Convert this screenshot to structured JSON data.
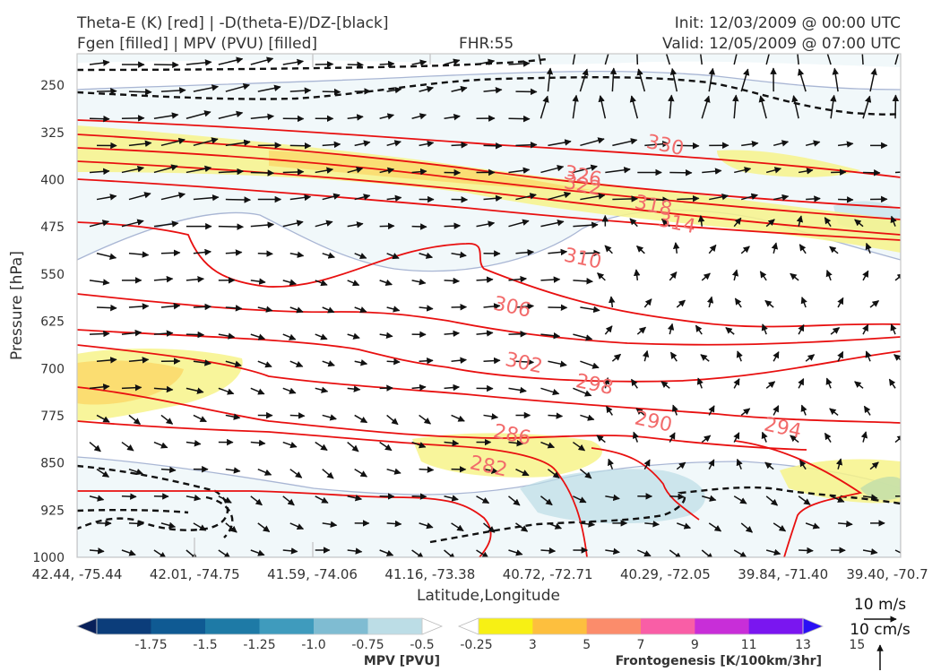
{
  "header": {
    "title_left_1": "Theta-E (K) [red] | -D(theta-E)/DZ-[black]",
    "title_left_2": "Fgen [filled] | MPV (PVU) [filled]",
    "fhr": "FHR:55",
    "init": "Init: 12/03/2009 @ 00:00 UTC",
    "valid": "Valid: 12/05/2009 @ 07:00 UTC"
  },
  "chart_data": {
    "type": "cross-section",
    "ylabel": "Pressure [hPa]",
    "xlabel": "Latitude,Longitude",
    "y_ticks": [
      250,
      325,
      400,
      475,
      550,
      625,
      700,
      775,
      850,
      925,
      1000
    ],
    "ylim": [
      1000,
      200
    ],
    "y_inverted": true,
    "x_ticks": [
      "42.44, -75.44",
      "42.01, -74.75",
      "41.59, -74.06",
      "41.16, -73.38",
      "40.72, -72.71",
      "40.29, -72.05",
      "39.84, -71.40",
      "39.40, -70.7"
    ],
    "theta_e_contour_labels": [
      {
        "label": "330",
        "x": 5.0,
        "p": 344
      },
      {
        "label": "326",
        "x": 4.3,
        "p": 393
      },
      {
        "label": "322",
        "x": 4.3,
        "p": 408
      },
      {
        "label": "318",
        "x": 4.9,
        "p": 440
      },
      {
        "label": "314",
        "x": 5.1,
        "p": 468
      },
      {
        "label": "310",
        "x": 4.3,
        "p": 524
      },
      {
        "label": "306",
        "x": 3.7,
        "p": 601
      },
      {
        "label": "302",
        "x": 3.8,
        "p": 690
      },
      {
        "label": "298",
        "x": 4.4,
        "p": 724
      },
      {
        "label": "294",
        "x": 6.0,
        "p": 793
      },
      {
        "label": "290",
        "x": 4.9,
        "p": 783
      },
      {
        "label": "286",
        "x": 3.7,
        "p": 804
      },
      {
        "label": "282",
        "x": 3.5,
        "p": 854
      }
    ],
    "wind_reference": {
      "horizontal": "10 m/s",
      "vertical": "10 cm/s"
    }
  },
  "colorbars": {
    "mpv": {
      "label": "MPV [PVU]",
      "ticks": [
        "-1.75",
        "-1.5",
        "-1.25",
        "-1.0",
        "-0.75",
        "-0.5",
        "-0.25"
      ],
      "colors": [
        "#08205a",
        "#0b3d7a",
        "#0f5a93",
        "#1e7aa6",
        "#3f9bbd",
        "#7fbcd2",
        "#bcdde6",
        "#ffffff"
      ]
    },
    "fgen": {
      "label": "Frontogenesis [K/100km/3hr]",
      "ticks": [
        "3",
        "5",
        "7",
        "9",
        "11",
        "13",
        "15"
      ],
      "colors": [
        "#ffffff",
        "#f7f014",
        "#fdbf3e",
        "#fb8c6b",
        "#f95ea6",
        "#c82ed8",
        "#7a16f0",
        "#2a10f5"
      ]
    }
  }
}
